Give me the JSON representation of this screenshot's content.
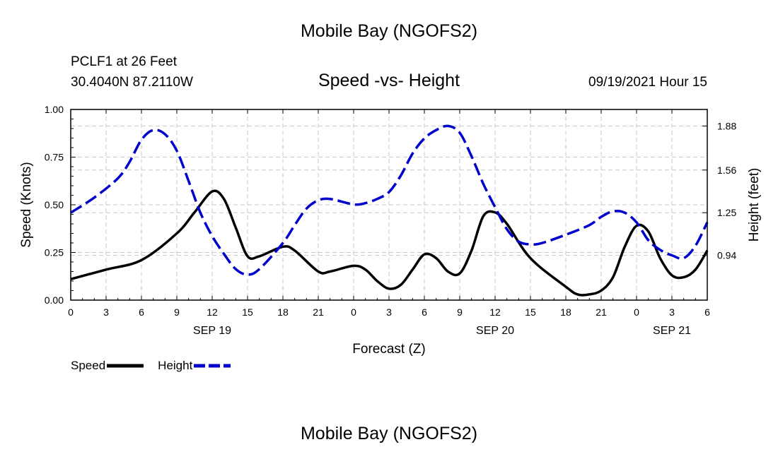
{
  "chart_data": {
    "type": "line",
    "title": "Mobile Bay (NGOFS2)",
    "footer_title": "Mobile Bay (NGOFS2)",
    "station": "PCLF1 at 26 Feet",
    "coordinates": "30.4040N  87.2110W",
    "subtitle": "Speed -vs- Height",
    "datetime": "09/19/2021 Hour 15",
    "xlabel": "Forecast (Z)",
    "ylabel_left": "Speed (Knots)",
    "ylabel_right": "Height (feet)",
    "x_range": [
      0,
      54
    ],
    "x_ticks": [
      0,
      3,
      6,
      9,
      12,
      15,
      18,
      21,
      24,
      27,
      30,
      33,
      36,
      39,
      42,
      45,
      48,
      51,
      54
    ],
    "x_tick_labels": [
      "0",
      "3",
      "6",
      "9",
      "12",
      "15",
      "18",
      "21",
      "0",
      "3",
      "6",
      "9",
      "12",
      "15",
      "18",
      "21",
      "0",
      "3",
      "6"
    ],
    "date_labels": [
      {
        "x": 12,
        "label": "SEP 19"
      },
      {
        "x": 36,
        "label": "SEP 20"
      },
      {
        "x": 51,
        "label": "SEP 21"
      }
    ],
    "left_ylim": [
      0,
      1
    ],
    "left_ticks": [
      0,
      0.25,
      0.5,
      0.75,
      1.0
    ],
    "left_tick_labels": [
      "0.00",
      "0.25",
      "0.50",
      "0.75",
      "1.00"
    ],
    "right_ylim": [
      0.615,
      2.0
    ],
    "right_ticks": [
      0.94,
      1.25,
      1.56,
      1.88
    ],
    "right_tick_labels": [
      "0.94",
      "1.25",
      "1.56",
      "1.88"
    ],
    "grid": true,
    "series": [
      {
        "name": "Speed",
        "axis": "left",
        "color": "#000000",
        "dash": "solid",
        "points": [
          [
            0,
            0.11
          ],
          [
            3,
            0.16
          ],
          [
            6,
            0.21
          ],
          [
            9,
            0.35
          ],
          [
            10.5,
            0.46
          ],
          [
            12,
            0.57
          ],
          [
            13,
            0.53
          ],
          [
            14,
            0.38
          ],
          [
            15,
            0.23
          ],
          [
            16,
            0.23
          ],
          [
            18,
            0.28
          ],
          [
            19,
            0.26
          ],
          [
            21,
            0.15
          ],
          [
            22,
            0.15
          ],
          [
            24,
            0.18
          ],
          [
            25,
            0.16
          ],
          [
            26,
            0.1
          ],
          [
            27,
            0.06
          ],
          [
            28,
            0.08
          ],
          [
            29,
            0.16
          ],
          [
            30,
            0.24
          ],
          [
            31,
            0.22
          ],
          [
            32,
            0.15
          ],
          [
            33,
            0.14
          ],
          [
            34,
            0.26
          ],
          [
            35,
            0.44
          ],
          [
            36,
            0.46
          ],
          [
            37,
            0.4
          ],
          [
            39,
            0.22
          ],
          [
            42,
            0.07
          ],
          [
            43,
            0.03
          ],
          [
            44,
            0.03
          ],
          [
            45,
            0.05
          ],
          [
            46,
            0.12
          ],
          [
            47,
            0.28
          ],
          [
            48,
            0.39
          ],
          [
            49,
            0.36
          ],
          [
            50,
            0.22
          ],
          [
            51,
            0.13
          ],
          [
            52,
            0.12
          ],
          [
            53,
            0.16
          ],
          [
            54,
            0.26
          ]
        ]
      },
      {
        "name": "Height",
        "axis": "right",
        "color": "#0000cc",
        "dash": "dashed",
        "points": [
          [
            0,
            1.25
          ],
          [
            2,
            1.36
          ],
          [
            4,
            1.5
          ],
          [
            5,
            1.62
          ],
          [
            6,
            1.78
          ],
          [
            7,
            1.85
          ],
          [
            8,
            1.82
          ],
          [
            9,
            1.7
          ],
          [
            10,
            1.48
          ],
          [
            11,
            1.25
          ],
          [
            12,
            1.08
          ],
          [
            13,
            0.95
          ],
          [
            14,
            0.84
          ],
          [
            15,
            0.8
          ],
          [
            16,
            0.84
          ],
          [
            18,
            1.03
          ],
          [
            19,
            1.16
          ],
          [
            20,
            1.28
          ],
          [
            21,
            1.34
          ],
          [
            22,
            1.35
          ],
          [
            24,
            1.31
          ],
          [
            25,
            1.32
          ],
          [
            26,
            1.35
          ],
          [
            27,
            1.4
          ],
          [
            28,
            1.52
          ],
          [
            29,
            1.68
          ],
          [
            30,
            1.79
          ],
          [
            31,
            1.85
          ],
          [
            32,
            1.88
          ],
          [
            33,
            1.83
          ],
          [
            34,
            1.66
          ],
          [
            35,
            1.46
          ],
          [
            36,
            1.29
          ],
          [
            37,
            1.13
          ],
          [
            38,
            1.04
          ],
          [
            39,
            1.02
          ],
          [
            40,
            1.03
          ],
          [
            42,
            1.09
          ],
          [
            44,
            1.16
          ],
          [
            45,
            1.22
          ],
          [
            46,
            1.26
          ],
          [
            47,
            1.25
          ],
          [
            48,
            1.18
          ],
          [
            49,
            1.05
          ],
          [
            50,
            0.98
          ],
          [
            51,
            0.94
          ],
          [
            52,
            0.92
          ],
          [
            53,
            1.01
          ],
          [
            54,
            1.18
          ]
        ]
      }
    ],
    "legend": [
      {
        "label": "Speed",
        "color": "#000000",
        "dash": "solid"
      },
      {
        "label": "Height",
        "color": "#0000cc",
        "dash": "dashed"
      }
    ]
  }
}
